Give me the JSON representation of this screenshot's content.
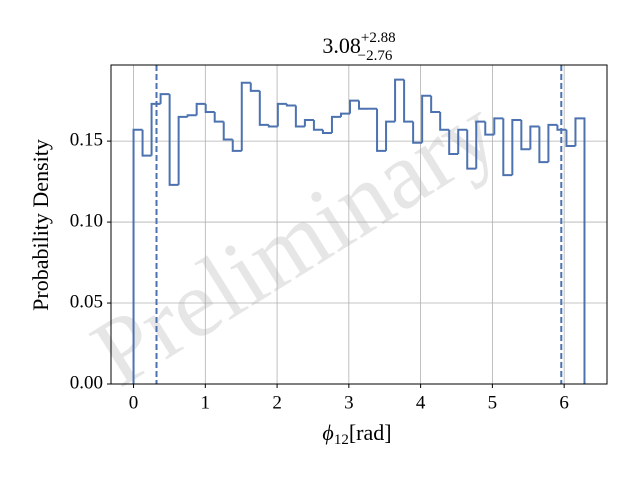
{
  "chart_data": {
    "type": "histogram",
    "title": {
      "main": "3.08",
      "upper": "+2.88",
      "lower": "−2.76"
    },
    "watermark": "Preliminary",
    "x_label": {
      "symbol": "ϕ",
      "sub": "12",
      "unit": "[rad]"
    },
    "y_label": "Probability Density",
    "bins": [
      0,
      0.1257,
      0.2513,
      0.377,
      0.5027,
      0.6283,
      0.754,
      0.8796,
      1.0053,
      1.131,
      1.2566,
      1.3823,
      1.508,
      1.6336,
      1.7593,
      1.885,
      2.0106,
      2.1363,
      2.2619,
      2.3876,
      2.5133,
      2.6389,
      2.7646,
      2.8903,
      3.0159,
      3.1416,
      3.2673,
      3.3929,
      3.5186,
      3.6442,
      3.7699,
      3.8956,
      4.0212,
      4.1469,
      4.2726,
      4.3982,
      4.5239,
      4.6496,
      4.7752,
      4.9009,
      5.0265,
      5.1522,
      5.2779,
      5.4035,
      5.5292,
      5.6549,
      5.7805,
      5.9062,
      6.0319,
      6.1575,
      6.2832
    ],
    "values": [
      0.157,
      0.141,
      0.173,
      0.179,
      0.123,
      0.165,
      0.166,
      0.173,
      0.168,
      0.162,
      0.151,
      0.144,
      0.186,
      0.181,
      0.16,
      0.159,
      0.173,
      0.172,
      0.159,
      0.163,
      0.157,
      0.155,
      0.165,
      0.167,
      0.175,
      0.17,
      0.17,
      0.144,
      0.162,
      0.188,
      0.162,
      0.149,
      0.178,
      0.168,
      0.157,
      0.142,
      0.157,
      0.133,
      0.162,
      0.154,
      0.164,
      0.129,
      0.163,
      0.145,
      0.159,
      0.137,
      0.16,
      0.157,
      0.147,
      0.164
    ],
    "color": "#4c72b0",
    "vlines": [
      0.32,
      5.96
    ],
    "xlim": [
      -0.314,
      6.597
    ],
    "xticks": [
      0,
      1,
      2,
      3,
      4,
      5,
      6
    ],
    "ylim": [
      0,
      0.197
    ],
    "yticks": [
      {
        "value": 0,
        "label": "0.00"
      },
      0.05,
      {
        "value": 0.1,
        "label": "0.10"
      },
      0.15
    ],
    "grid": true
  }
}
